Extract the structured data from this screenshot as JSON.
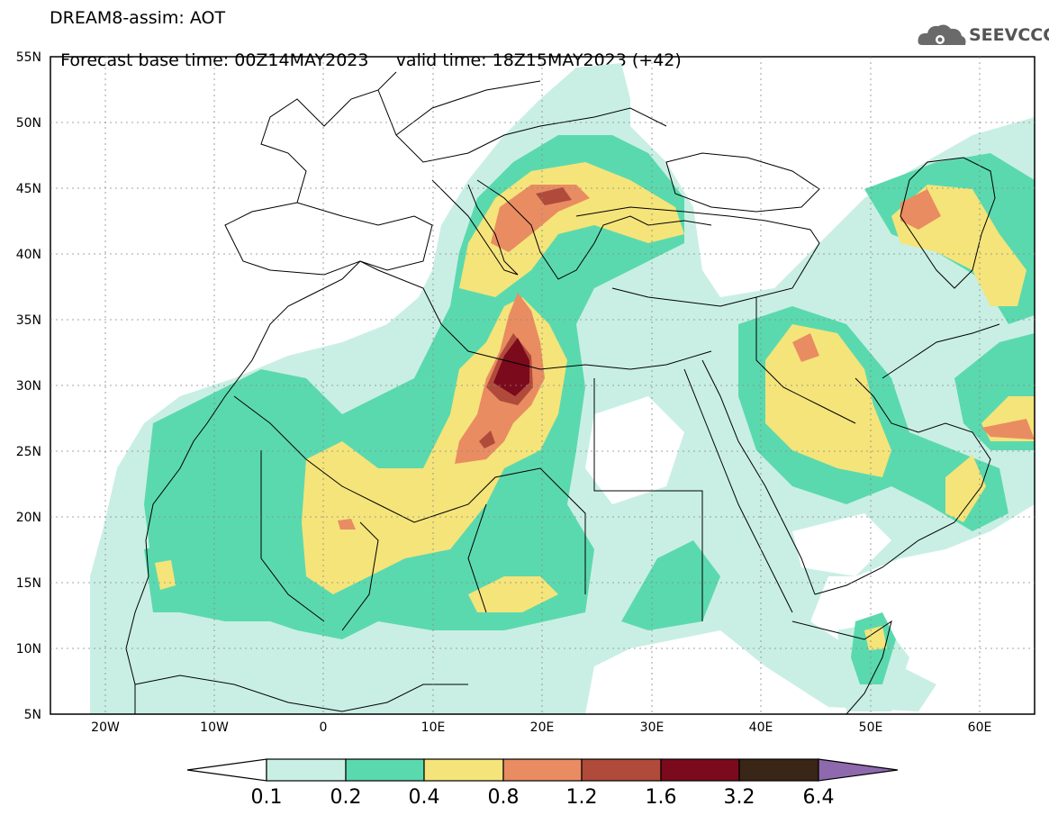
{
  "header": {
    "line1": "DREAM8-assim: AOT",
    "base_time": "Forecast base time: 00Z14MAY2023",
    "valid_time": "valid time: 18Z15MAY2023 (+42)"
  },
  "logo": {
    "text": "SEEVCCC",
    "icon": "cloud-icon"
  },
  "map": {
    "lat_labels": [
      "55N",
      "50N",
      "45N",
      "40N",
      "35N",
      "30N",
      "25N",
      "20N",
      "15N",
      "10N",
      "5N"
    ],
    "lon_labels": [
      "20W",
      "10W",
      "0",
      "10E",
      "20E",
      "30E",
      "40E",
      "50E",
      "60E"
    ],
    "lat_range": [
      5,
      55
    ],
    "lon_range": [
      -25,
      65
    ],
    "grid": "dotted"
  },
  "colorbar": {
    "labels": [
      "0.1",
      "0.2",
      "0.4",
      "0.8",
      "1.2",
      "1.6",
      "3.2",
      "6.4"
    ],
    "colors": [
      "#ffffff",
      "#c9efe4",
      "#5bd9ae",
      "#f5e47a",
      "#e98c62",
      "#b04a3a",
      "#7b0a1d",
      "#3a2616",
      "#8f69ad"
    ]
  },
  "levels": {
    "c01": "#c9efe4",
    "c02": "#5bd9ae",
    "c04": "#f5e47a",
    "c08": "#e98c62",
    "c12": "#b04a3a",
    "c16": "#7b0a1d"
  }
}
